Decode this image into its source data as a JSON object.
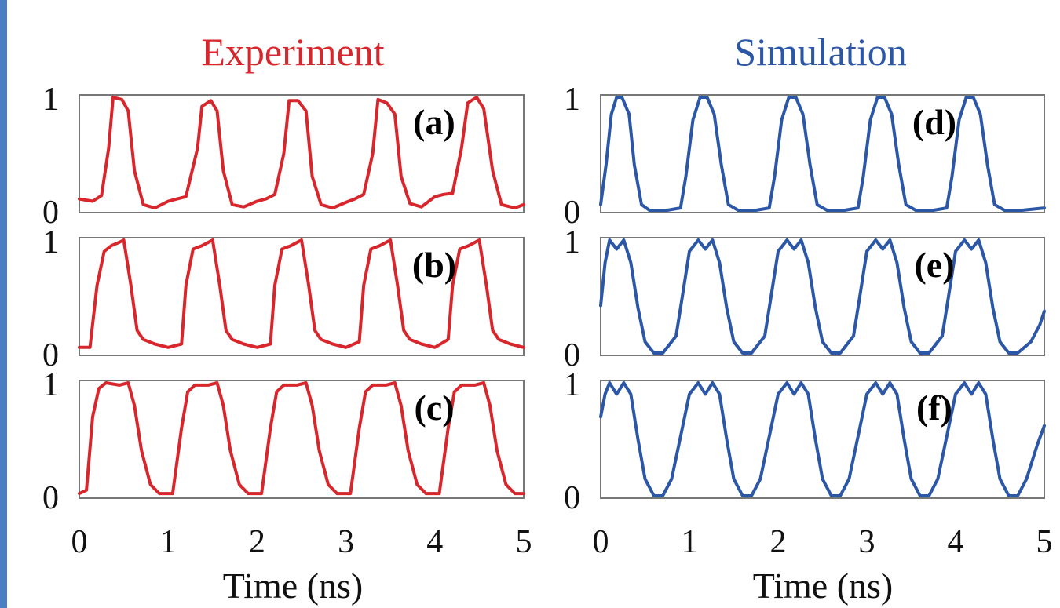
{
  "colors": {
    "experiment": "#d7262c",
    "simulation": "#2b57a6",
    "frame": "#777777",
    "text": "#111111",
    "edge": "#4a7fc1"
  },
  "columns": [
    {
      "key": "experiment",
      "title": "Experiment",
      "xlabel": "Time (ns)"
    },
    {
      "key": "simulation",
      "title": "Simulation",
      "xlabel": "Time (ns)"
    }
  ],
  "chart_data": [
    {
      "type": "line",
      "panel": "(a)",
      "column": "experiment",
      "xlim": [
        0,
        5
      ],
      "ylim": [
        0,
        1
      ],
      "xticks": [
        "0",
        "1",
        "2",
        "3",
        "4",
        "5"
      ],
      "yticks": [
        "0",
        "1"
      ],
      "grid": false,
      "series": [
        {
          "x": [
            0,
            0.15,
            0.25,
            0.33,
            0.38,
            0.48,
            0.55,
            0.62,
            0.72,
            0.85,
            1.0,
            1.1,
            1.2,
            1.33,
            1.38,
            1.48,
            1.55,
            1.62,
            1.72,
            1.85,
            2.0,
            2.1,
            2.2,
            2.3,
            2.36,
            2.46,
            2.55,
            2.62,
            2.72,
            2.85,
            3.0,
            3.1,
            3.2,
            3.3,
            3.36,
            3.46,
            3.55,
            3.62,
            3.72,
            3.85,
            4.0,
            4.1,
            4.2,
            4.3,
            4.37,
            4.47,
            4.55,
            4.65,
            4.75,
            4.9,
            5.0
          ],
          "y": [
            0.1,
            0.08,
            0.13,
            0.55,
            1.0,
            0.98,
            0.88,
            0.35,
            0.05,
            0.02,
            0.08,
            0.1,
            0.12,
            0.55,
            0.92,
            0.97,
            0.88,
            0.35,
            0.05,
            0.03,
            0.08,
            0.1,
            0.14,
            0.5,
            0.97,
            0.97,
            0.88,
            0.3,
            0.05,
            0.02,
            0.07,
            0.1,
            0.14,
            0.5,
            0.98,
            0.95,
            0.85,
            0.3,
            0.06,
            0.03,
            0.12,
            0.14,
            0.15,
            0.55,
            0.95,
            1.0,
            0.9,
            0.35,
            0.05,
            0.02,
            0.05
          ]
        }
      ]
    },
    {
      "type": "line",
      "panel": "(b)",
      "column": "experiment",
      "xlim": [
        0,
        5
      ],
      "ylim": [
        0,
        1
      ],
      "xticks": [
        "0",
        "1",
        "2",
        "3",
        "4",
        "5"
      ],
      "yticks": [
        "0",
        "1"
      ],
      "grid": false,
      "series": [
        {
          "x": [
            0,
            0.12,
            0.2,
            0.28,
            0.36,
            0.45,
            0.5,
            0.58,
            0.65,
            0.72,
            0.85,
            1.0,
            1.15,
            1.2,
            1.28,
            1.38,
            1.5,
            1.58,
            1.65,
            1.72,
            1.85,
            2.0,
            2.15,
            2.2,
            2.28,
            2.38,
            2.5,
            2.58,
            2.65,
            2.72,
            2.85,
            3.0,
            3.15,
            3.2,
            3.28,
            3.38,
            3.5,
            3.58,
            3.65,
            3.72,
            3.85,
            4.0,
            4.15,
            4.2,
            4.28,
            4.38,
            4.5,
            4.58,
            4.65,
            4.72,
            4.85,
            5.0
          ],
          "y": [
            0.05,
            0.05,
            0.6,
            0.9,
            0.95,
            0.98,
            1.0,
            0.6,
            0.2,
            0.12,
            0.08,
            0.05,
            0.08,
            0.6,
            0.92,
            0.95,
            1.0,
            0.6,
            0.2,
            0.12,
            0.08,
            0.05,
            0.08,
            0.6,
            0.92,
            0.95,
            1.0,
            0.6,
            0.2,
            0.12,
            0.08,
            0.05,
            0.1,
            0.6,
            0.92,
            0.95,
            1.0,
            0.6,
            0.2,
            0.12,
            0.08,
            0.05,
            0.12,
            0.6,
            0.92,
            0.95,
            1.0,
            0.6,
            0.2,
            0.12,
            0.08,
            0.05
          ]
        }
      ]
    },
    {
      "type": "line",
      "panel": "(c)",
      "column": "experiment",
      "xlim": [
        0,
        5
      ],
      "ylim": [
        0,
        1
      ],
      "xticks": [
        "0",
        "1",
        "2",
        "3",
        "4",
        "5"
      ],
      "yticks": [
        "0",
        "1"
      ],
      "grid": false,
      "series": [
        {
          "x": [
            0,
            0.08,
            0.15,
            0.22,
            0.3,
            0.45,
            0.55,
            0.62,
            0.7,
            0.8,
            0.9,
            1.05,
            1.15,
            1.22,
            1.3,
            1.45,
            1.55,
            1.62,
            1.7,
            1.8,
            1.9,
            2.05,
            2.15,
            2.22,
            2.3,
            2.45,
            2.55,
            2.62,
            2.7,
            2.8,
            2.9,
            3.05,
            3.15,
            3.22,
            3.3,
            3.45,
            3.55,
            3.62,
            3.7,
            3.8,
            3.9,
            4.05,
            4.15,
            4.22,
            4.3,
            4.45,
            4.55,
            4.62,
            4.7,
            4.8,
            4.9,
            5.0
          ],
          "y": [
            0.02,
            0.05,
            0.7,
            0.95,
            1.0,
            0.98,
            1.0,
            0.8,
            0.4,
            0.1,
            0.02,
            0.02,
            0.6,
            0.92,
            0.98,
            0.98,
            1.0,
            0.8,
            0.4,
            0.1,
            0.02,
            0.02,
            0.6,
            0.92,
            0.98,
            0.98,
            1.0,
            0.8,
            0.4,
            0.1,
            0.02,
            0.02,
            0.6,
            0.92,
            0.98,
            0.98,
            1.0,
            0.8,
            0.4,
            0.1,
            0.02,
            0.02,
            0.6,
            0.92,
            0.98,
            0.98,
            1.0,
            0.8,
            0.4,
            0.1,
            0.02,
            0.02
          ]
        }
      ]
    },
    {
      "type": "line",
      "panel": "(d)",
      "column": "simulation",
      "xlim": [
        0,
        5
      ],
      "ylim": [
        0,
        1
      ],
      "xticks": [
        "0",
        "1",
        "2",
        "3",
        "4",
        "5"
      ],
      "yticks": [
        "0",
        "1"
      ],
      "grid": false,
      "series": [
        {
          "x": [
            0,
            0.06,
            0.12,
            0.18,
            0.24,
            0.32,
            0.38,
            0.46,
            0.55,
            0.75,
            0.9,
            0.96,
            1.04,
            1.12,
            1.2,
            1.28,
            1.36,
            1.44,
            1.55,
            1.75,
            1.9,
            1.96,
            2.04,
            2.12,
            2.2,
            2.28,
            2.36,
            2.44,
            2.55,
            2.75,
            2.9,
            2.96,
            3.04,
            3.12,
            3.2,
            3.28,
            3.36,
            3.44,
            3.55,
            3.75,
            3.9,
            3.96,
            4.04,
            4.12,
            4.2,
            4.28,
            4.36,
            4.44,
            4.55,
            4.75,
            5.0
          ],
          "y": [
            0.05,
            0.4,
            0.85,
            1.0,
            1.0,
            0.85,
            0.4,
            0.05,
            0,
            0,
            0.02,
            0.3,
            0.8,
            1.0,
            1.0,
            0.85,
            0.4,
            0.05,
            0,
            0,
            0.02,
            0.3,
            0.8,
            1.0,
            1.0,
            0.85,
            0.4,
            0.05,
            0,
            0,
            0.02,
            0.3,
            0.8,
            1.0,
            1.0,
            0.85,
            0.4,
            0.05,
            0,
            0,
            0.02,
            0.3,
            0.8,
            1.0,
            1.0,
            0.85,
            0.4,
            0.05,
            0,
            0,
            0.02
          ]
        }
      ]
    },
    {
      "type": "line",
      "panel": "(e)",
      "column": "simulation",
      "xlim": [
        0,
        5
      ],
      "ylim": [
        0,
        1
      ],
      "xticks": [
        "0",
        "1",
        "2",
        "3",
        "4",
        "5"
      ],
      "yticks": [
        "0",
        "1"
      ],
      "grid": false,
      "series": [
        {
          "x": [
            0,
            0.05,
            0.1,
            0.18,
            0.26,
            0.34,
            0.42,
            0.5,
            0.6,
            0.7,
            0.85,
            0.92,
            1.0,
            1.1,
            1.18,
            1.26,
            1.34,
            1.42,
            1.5,
            1.6,
            1.7,
            1.85,
            1.92,
            2.0,
            2.1,
            2.18,
            2.26,
            2.34,
            2.42,
            2.5,
            2.6,
            2.7,
            2.85,
            2.92,
            3.0,
            3.1,
            3.18,
            3.26,
            3.34,
            3.42,
            3.5,
            3.6,
            3.7,
            3.85,
            3.92,
            4.0,
            4.1,
            4.18,
            4.26,
            4.34,
            4.42,
            4.5,
            4.6,
            4.7,
            4.85,
            4.95,
            5.0
          ],
          "y": [
            0.42,
            0.8,
            1.0,
            0.92,
            1.0,
            0.8,
            0.4,
            0.1,
            0,
            0,
            0.15,
            0.5,
            0.9,
            1.0,
            0.92,
            1.0,
            0.8,
            0.4,
            0.1,
            0,
            0,
            0.15,
            0.5,
            0.9,
            1.0,
            0.92,
            1.0,
            0.8,
            0.4,
            0.1,
            0,
            0,
            0.15,
            0.5,
            0.9,
            1.0,
            0.92,
            1.0,
            0.8,
            0.4,
            0.1,
            0,
            0,
            0.15,
            0.5,
            0.9,
            1.0,
            0.92,
            1.0,
            0.8,
            0.4,
            0.1,
            0,
            0,
            0.1,
            0.25,
            0.37
          ]
        }
      ]
    },
    {
      "type": "line",
      "panel": "(f)",
      "column": "simulation",
      "xlim": [
        0,
        5
      ],
      "ylim": [
        0,
        1
      ],
      "xticks": [
        "0",
        "1",
        "2",
        "3",
        "4",
        "5"
      ],
      "yticks": [
        "0",
        "1"
      ],
      "grid": false,
      "series": [
        {
          "x": [
            0,
            0.05,
            0.1,
            0.18,
            0.26,
            0.34,
            0.42,
            0.5,
            0.6,
            0.7,
            0.8,
            0.92,
            1.0,
            1.1,
            1.18,
            1.26,
            1.34,
            1.42,
            1.5,
            1.6,
            1.7,
            1.8,
            1.92,
            2.0,
            2.1,
            2.18,
            2.26,
            2.34,
            2.42,
            2.5,
            2.6,
            2.7,
            2.8,
            2.92,
            3.0,
            3.1,
            3.18,
            3.26,
            3.34,
            3.42,
            3.5,
            3.6,
            3.7,
            3.8,
            3.92,
            4.0,
            4.1,
            4.18,
            4.26,
            4.34,
            4.42,
            4.5,
            4.6,
            4.7,
            4.8,
            4.92,
            5.0
          ],
          "y": [
            0.7,
            0.9,
            1.0,
            0.9,
            1.0,
            0.9,
            0.5,
            0.15,
            0,
            0,
            0.15,
            0.6,
            0.9,
            1.0,
            0.9,
            1.0,
            0.9,
            0.5,
            0.15,
            0,
            0,
            0.15,
            0.6,
            0.9,
            1.0,
            0.9,
            1.0,
            0.9,
            0.5,
            0.15,
            0,
            0,
            0.15,
            0.6,
            0.9,
            1.0,
            0.9,
            1.0,
            0.9,
            0.5,
            0.15,
            0,
            0,
            0.15,
            0.6,
            0.9,
            1.0,
            0.9,
            1.0,
            0.9,
            0.5,
            0.15,
            0,
            0,
            0.15,
            0.45,
            0.62
          ]
        }
      ]
    }
  ]
}
